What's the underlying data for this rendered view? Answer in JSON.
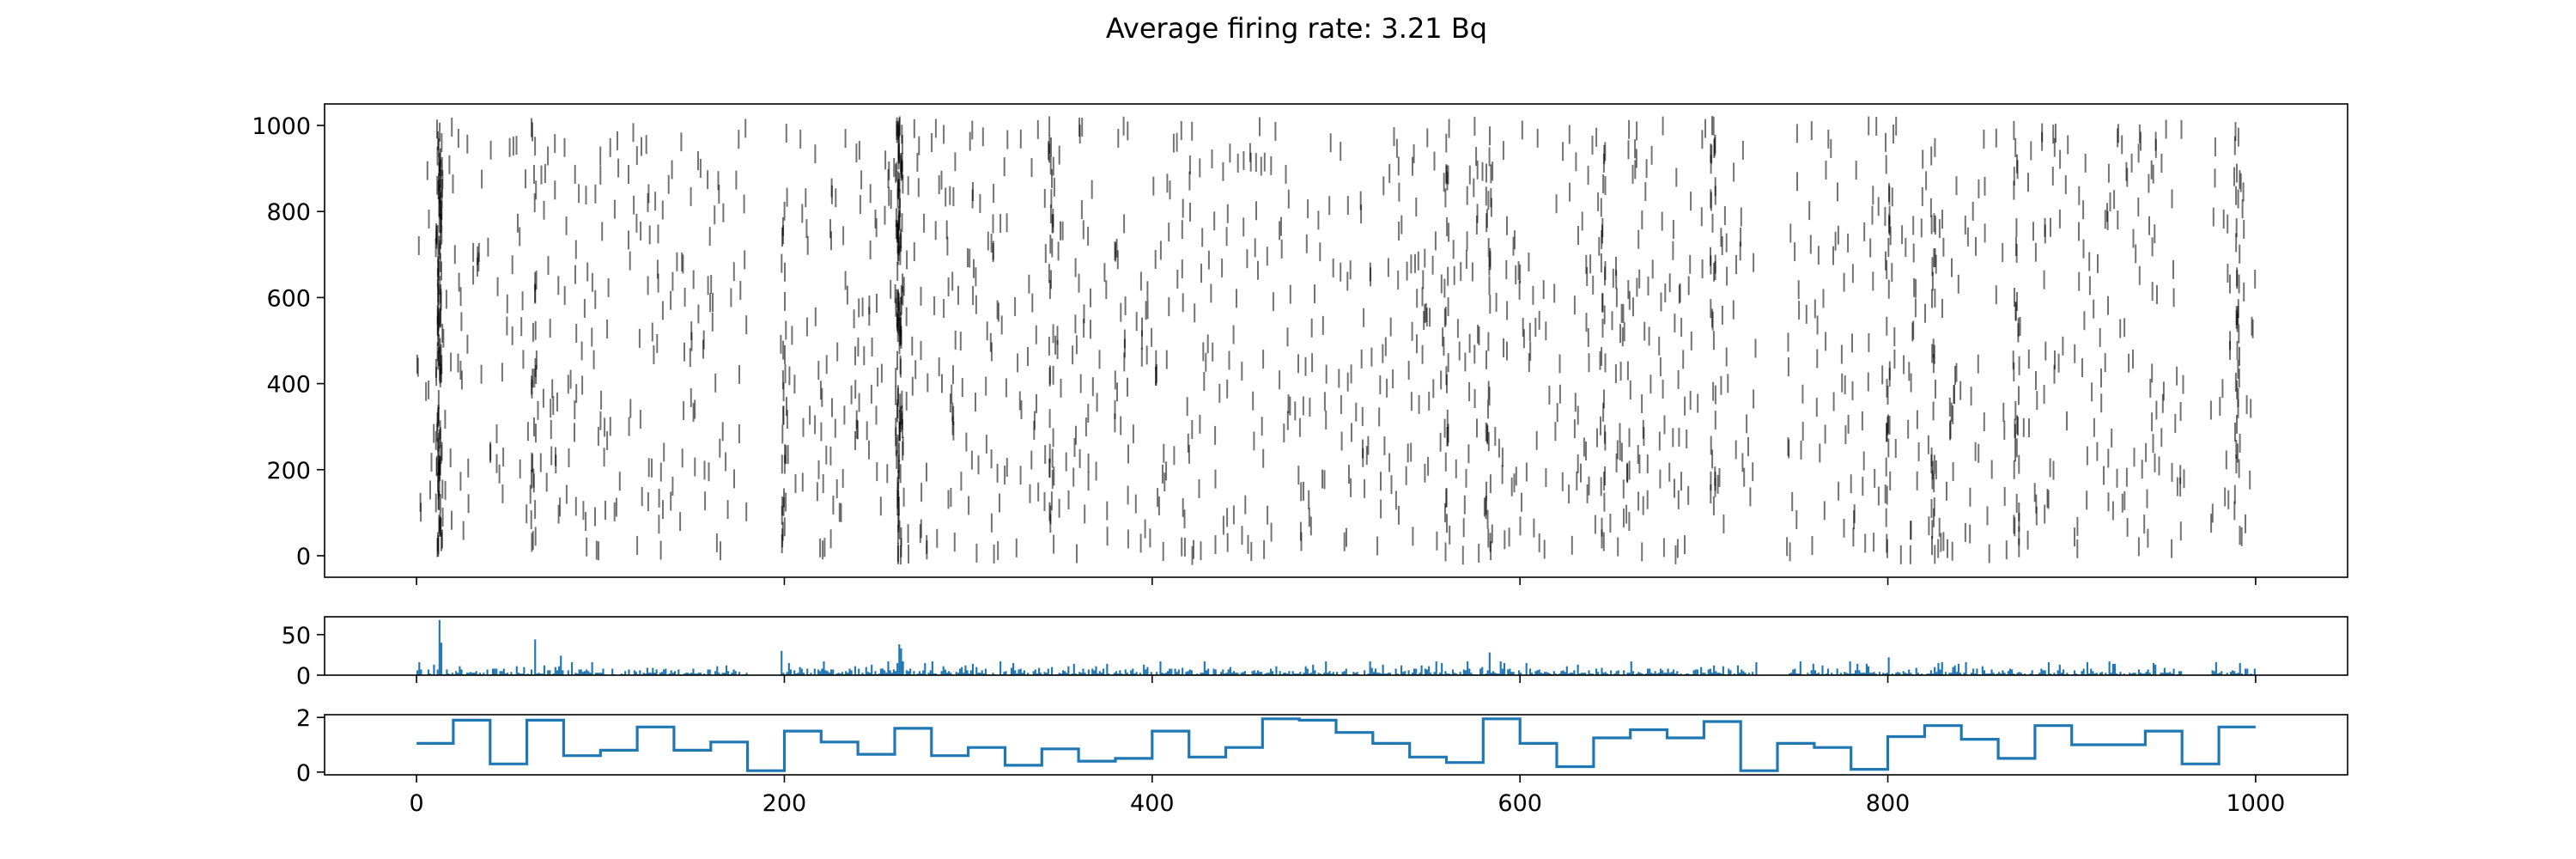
{
  "figure": {
    "title": "Average firing rate: 3.21 Bq"
  },
  "chart_data": [
    {
      "type": "scatter",
      "title": "Average firing rate: 3.21 Bq",
      "marker": "vertical-tick",
      "xlim": [
        -50,
        1050
      ],
      "ylim": [
        -50,
        1050
      ],
      "xticks": [
        0,
        200,
        400,
        600,
        800,
        1000
      ],
      "yticks": [
        0,
        200,
        400,
        600,
        800,
        1000
      ],
      "yticklabels": [
        "0",
        "200",
        "400",
        "600",
        "800",
        "1000"
      ],
      "xticklabels": [],
      "grid": false,
      "color": "#000000",
      "x_range": [
        0,
        1000
      ],
      "y_range": [
        0,
        1000
      ],
      "burst_times": [
        12,
        13,
        64,
        200,
        262,
        263,
        345,
        560,
        583,
        645,
        705,
        800,
        825,
        870,
        990
      ],
      "silent_intervals": [
        [
          180,
          198
        ],
        [
          730,
          745
        ],
        [
          962,
          975
        ]
      ]
    },
    {
      "type": "bar",
      "xlim": [
        -50,
        1050
      ],
      "ylim": [
        0,
        72
      ],
      "yticks": [
        0,
        50
      ],
      "yticklabels": [
        "0",
        "50"
      ],
      "xticklabels": [],
      "color": "#1f77b4",
      "bins": [
        0,
        1000
      ],
      "peaks": [
        {
          "x": 12,
          "y": 68
        },
        {
          "x": 13,
          "y": 40
        },
        {
          "x": 64,
          "y": 44
        },
        {
          "x": 78,
          "y": 24
        },
        {
          "x": 198,
          "y": 30
        },
        {
          "x": 262,
          "y": 38
        },
        {
          "x": 263,
          "y": 33
        },
        {
          "x": 345,
          "y": 10
        },
        {
          "x": 583,
          "y": 28
        },
        {
          "x": 705,
          "y": 12
        },
        {
          "x": 800,
          "y": 22
        },
        {
          "x": 825,
          "y": 10
        }
      ]
    },
    {
      "type": "line",
      "drawstyle": "steps-post",
      "xlim": [
        -50,
        1050
      ],
      "ylim": [
        -0.1,
        2.1
      ],
      "yticks": [
        0,
        2
      ],
      "yticklabels": [
        "0",
        "2"
      ],
      "xticks": [
        0,
        200,
        400,
        600,
        800,
        1000
      ],
      "xticklabels": [
        "0",
        "200",
        "400",
        "600",
        "800",
        "1000"
      ],
      "color": "#1f77b4",
      "x": [
        0,
        20,
        40,
        60,
        80,
        100,
        120,
        140,
        160,
        180,
        200,
        220,
        240,
        260,
        280,
        300,
        320,
        340,
        360,
        380,
        400,
        420,
        440,
        460,
        480,
        500,
        520,
        540,
        560,
        580,
        600,
        620,
        640,
        660,
        680,
        700,
        720,
        740,
        760,
        780,
        800,
        820,
        840,
        860,
        880,
        900,
        920,
        940,
        960,
        980,
        1000
      ],
      "y": [
        1.05,
        1.9,
        0.3,
        1.9,
        0.6,
        0.8,
        1.65,
        0.8,
        1.1,
        0.05,
        1.5,
        1.1,
        0.65,
        1.6,
        0.6,
        0.9,
        0.25,
        0.85,
        0.4,
        0.5,
        1.5,
        0.55,
        0.9,
        1.95,
        1.9,
        1.45,
        1.05,
        0.55,
        0.35,
        1.95,
        1.05,
        0.2,
        1.25,
        1.55,
        1.25,
        1.85,
        0.05,
        1.05,
        0.9,
        0.1,
        1.3,
        1.7,
        1.2,
        0.5,
        1.7,
        1.0,
        1.0,
        1.5,
        0.3,
        1.65,
        1.65
      ]
    }
  ]
}
